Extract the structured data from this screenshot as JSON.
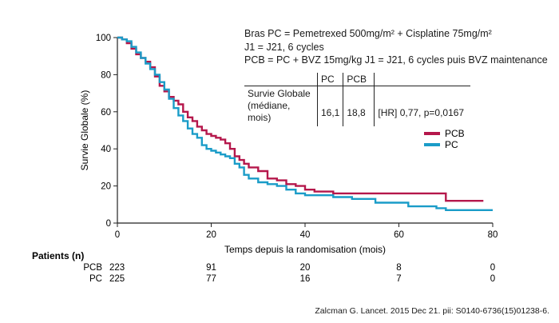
{
  "info_box": {
    "lines": [
      "Bras PC = Pemetrexed 500mg/m² + Cisplatine 75mg/m²",
      "J1 = J21, 6 cycles",
      "PCB = PC + BVZ 15mg/kg J1 = J21, 6 cycles puis BVZ maintenance"
    ],
    "table": {
      "headers": [
        "",
        "PC",
        "PCB",
        ""
      ],
      "row_label_1": "Survie Globale",
      "row_label_2": "(médiane, mois)",
      "pc_median": "16,1",
      "pcb_median": "18,8",
      "hr_text": "[HR] 0,77, p=0,0167"
    }
  },
  "chart_data": {
    "type": "line",
    "xlabel": "Temps depuis la randomisation  (mois)",
    "ylabel": "Survie Globale (%)",
    "xlim": [
      0,
      80
    ],
    "ylim": [
      0,
      100
    ],
    "x_ticks": [
      0,
      20,
      40,
      60,
      80
    ],
    "y_ticks": [
      0,
      20,
      40,
      60,
      80,
      100
    ],
    "grid": false,
    "legend_position": "right",
    "series": [
      {
        "name": "PCB",
        "color": "#b5174b",
        "x": [
          0,
          1,
          2,
          3,
          4,
          5,
          6,
          7,
          8,
          9,
          10,
          11,
          12,
          13,
          14,
          15,
          16,
          17,
          18,
          19,
          20,
          21,
          22,
          23,
          24,
          25,
          26,
          27,
          28,
          30,
          32,
          34,
          36,
          38,
          40,
          42,
          44,
          46,
          48,
          50,
          55,
          60,
          65,
          69,
          70,
          73,
          78
        ],
        "y": [
          100,
          99,
          97,
          94,
          91,
          89,
          87,
          84,
          79,
          74,
          71,
          68,
          66,
          64,
          60,
          57,
          55,
          52,
          50,
          48,
          47,
          46,
          45,
          43,
          40,
          36,
          34,
          32,
          30,
          28,
          24,
          23,
          21,
          20,
          18,
          17,
          17,
          16,
          16,
          16,
          16,
          16,
          16,
          16,
          12,
          12,
          12
        ]
      },
      {
        "name": "PC",
        "color": "#1a9cc8",
        "x": [
          0,
          1,
          2,
          3,
          4,
          5,
          6,
          7,
          8,
          9,
          10,
          11,
          12,
          13,
          14,
          15,
          16,
          17,
          18,
          19,
          20,
          21,
          22,
          23,
          24,
          25,
          26,
          27,
          28,
          30,
          32,
          34,
          36,
          38,
          40,
          42,
          44,
          46,
          48,
          50,
          55,
          60,
          62,
          68,
          70,
          80
        ],
        "y": [
          100,
          99,
          98,
          95,
          92,
          89,
          86,
          83,
          80,
          76,
          72,
          67,
          62,
          58,
          55,
          51,
          48,
          46,
          42,
          40,
          39,
          38,
          37,
          36,
          35,
          32,
          30,
          26,
          24,
          22,
          21,
          20,
          18,
          16,
          15,
          15,
          15,
          14,
          14,
          13,
          11,
          11,
          9,
          8,
          7,
          7
        ]
      }
    ]
  },
  "risk_table": {
    "title": "Patients (n)",
    "rows": [
      {
        "label": "PCB",
        "values": [
          "223",
          "91",
          "20",
          "8",
          "0"
        ]
      },
      {
        "label": "PC",
        "values": [
          "225",
          "77",
          "16",
          "7",
          "0"
        ]
      }
    ]
  },
  "credit": "Zalcman G. Lancet. 2015 Dec 21. pii: S0140-6736(15)01238-6."
}
